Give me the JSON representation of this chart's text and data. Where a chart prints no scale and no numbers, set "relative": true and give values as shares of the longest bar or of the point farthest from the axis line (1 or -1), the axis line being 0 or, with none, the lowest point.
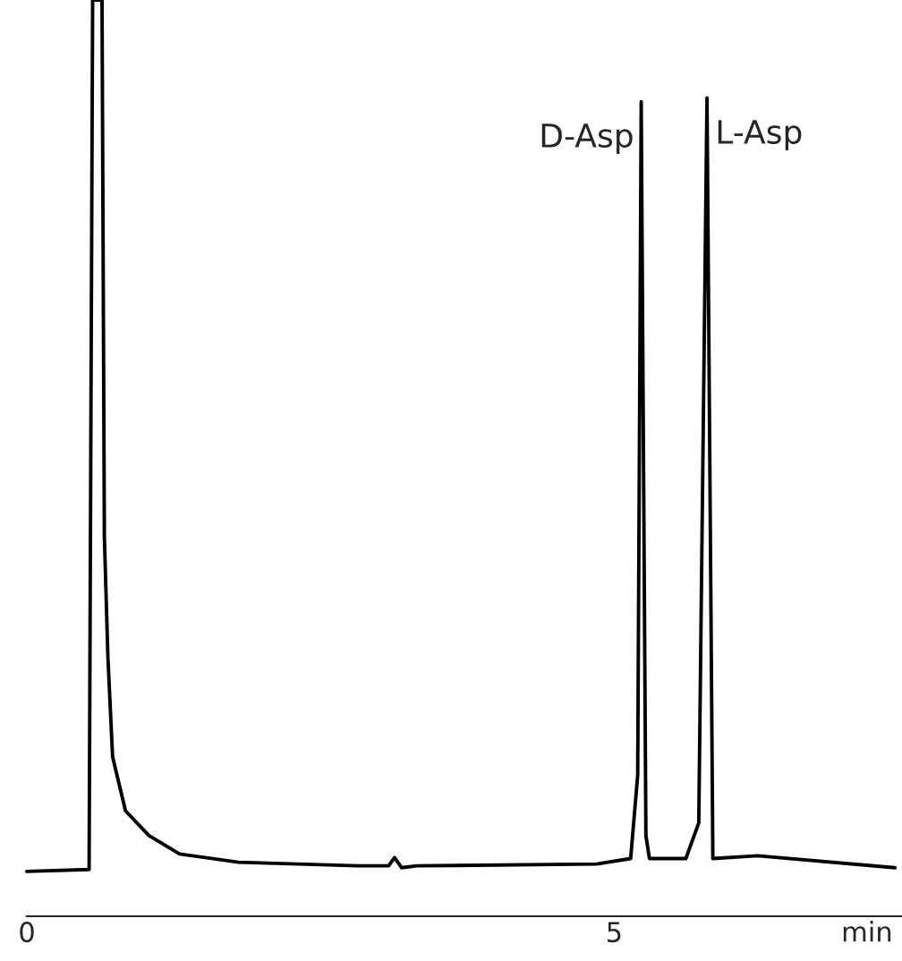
{
  "chart_data": {
    "type": "line",
    "relative": true,
    "xlabel": "min",
    "xlim": [
      0,
      7.45
    ],
    "xticks": [
      0,
      5
    ],
    "grid": false,
    "marker": "none",
    "line_style": "solid",
    "tick_labels": "x",
    "series": [
      {
        "color": "#000000",
        "x": [
          0.0,
          0.53,
          0.56,
          0.64,
          0.66,
          0.69,
          0.73,
          0.84,
          1.04,
          1.3,
          1.8,
          2.82,
          3.08,
          3.13,
          3.19,
          3.32,
          4.85,
          5.14,
          5.2,
          5.23,
          5.27,
          5.3,
          5.61,
          5.72,
          5.79,
          5.84,
          6.22,
          7.39
        ],
        "values": [
          0.049,
          0.051,
          1.0,
          1.0,
          0.414,
          0.283,
          0.174,
          0.115,
          0.088,
          0.068,
          0.059,
          0.055,
          0.055,
          0.064,
          0.053,
          0.055,
          0.057,
          0.063,
          0.154,
          0.889,
          0.088,
          0.063,
          0.063,
          0.102,
          0.893,
          0.063,
          0.066,
          0.053
        ]
      }
    ],
    "annotations": [
      {
        "text": "D-Asp",
        "x": 5.23,
        "y": 0.889
      },
      {
        "text": "L-Asp",
        "x": 5.79,
        "y": 0.893
      }
    ]
  }
}
